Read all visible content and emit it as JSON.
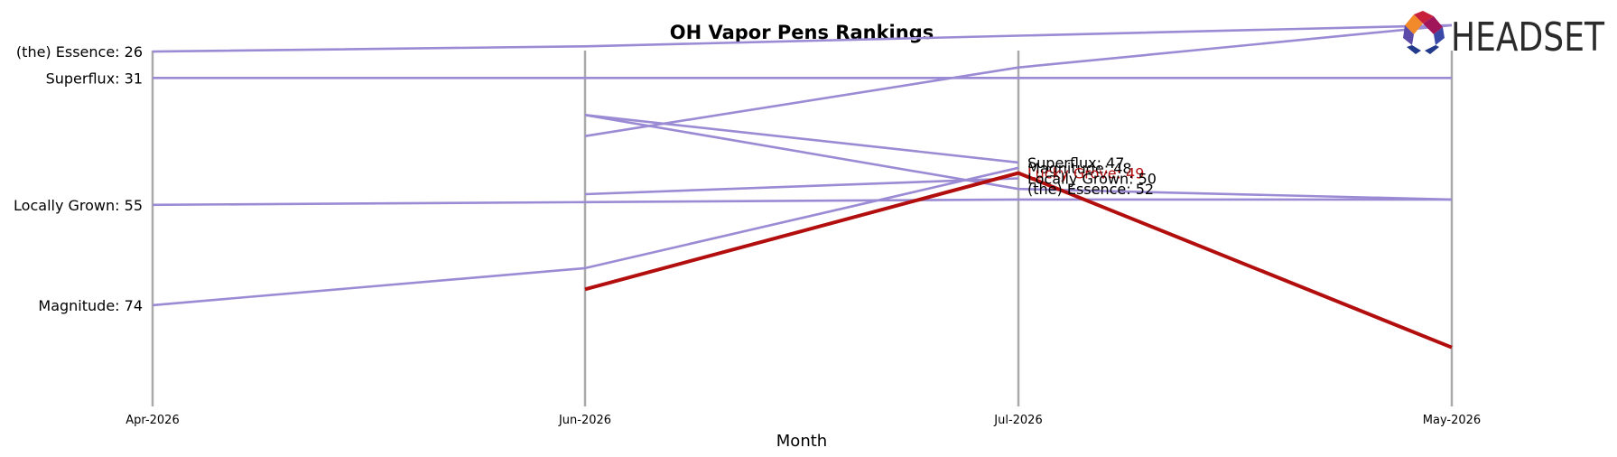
{
  "chart_data": {
    "type": "line",
    "title": "OH Vapor Pens Rankings",
    "xlabel": "Month",
    "ylabel": "",
    "x": [
      "Apr-2026",
      "Jun-2026",
      "Jul-2026",
      "May-2026"
    ],
    "ylim": [
      90,
      15
    ],
    "grid": false,
    "series": [
      {
        "name": "(the) Essence",
        "values": [
          26,
          25,
          23,
          21
        ],
        "highlight": false
      },
      {
        "name": "Superflux",
        "values": [
          31,
          31,
          31,
          31
        ],
        "highlight": false
      },
      {
        "name": "Superflux",
        "values": [
          null,
          38,
          47,
          null
        ],
        "highlight": false
      },
      {
        "name": "(the) Essence",
        "values": [
          null,
          38,
          52,
          54
        ],
        "highlight": false
      },
      {
        "name": "",
        "values": [
          null,
          42,
          29,
          21
        ],
        "highlight": false
      },
      {
        "name": "Locally Grown",
        "values": [
          55,
          54.5,
          54,
          54
        ],
        "highlight": false
      },
      {
        "name": "Locally Grown",
        "values": [
          null,
          53,
          50,
          null
        ],
        "highlight": false
      },
      {
        "name": "Magnitude",
        "values": [
          74,
          67,
          48,
          null
        ],
        "highlight": false
      },
      {
        "name": "Lucky Grove",
        "values": [
          null,
          71,
          49,
          82
        ],
        "highlight": true
      }
    ],
    "left_labels": [
      {
        "series": 0,
        "text": "(the) Essence: 26"
      },
      {
        "series": 1,
        "text": "Superflux: 31"
      },
      {
        "series": 5,
        "text": "Locally Grown: 55"
      },
      {
        "series": 7,
        "text": "Magnitude: 74"
      }
    ],
    "right_labels": [
      {
        "series": 2,
        "text": "Superflux: 47"
      },
      {
        "series": 7,
        "text": "Magnitude: 48"
      },
      {
        "series": 8,
        "text": "Lucky Grove: 49"
      },
      {
        "series": 6,
        "text": "Locally Grown: 50"
      },
      {
        "series": 3,
        "text": "(the) Essence: 52"
      }
    ],
    "colors": {
      "line": "#9b8bd4",
      "highlight": "#b30e0e",
      "axis": "#aaaaaa",
      "text": "#000000"
    }
  },
  "logo": {
    "text": "HEADSET"
  }
}
